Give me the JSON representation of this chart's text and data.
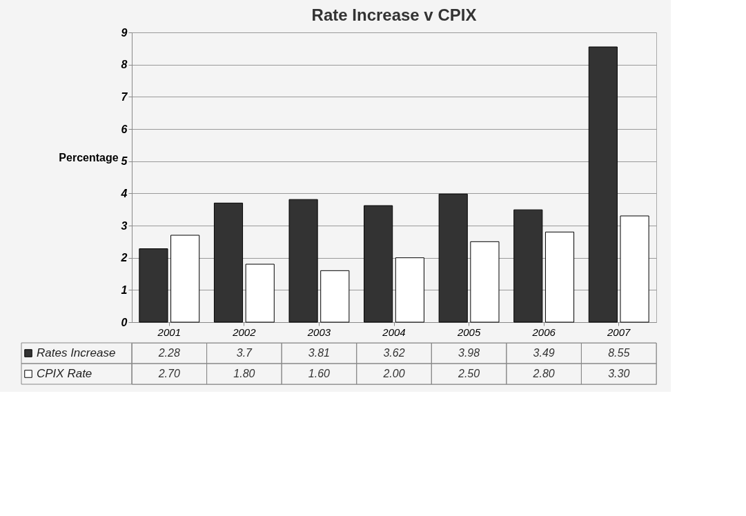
{
  "chart_data": {
    "type": "bar",
    "title": "Rate Increase v CPIX",
    "ylabel": "Percentage",
    "categories": [
      "2001",
      "2002",
      "2003",
      "2004",
      "2005",
      "2006",
      "2007"
    ],
    "series": [
      {
        "name": "Rates Increase",
        "color": "#333333",
        "values": [
          2.28,
          3.7,
          3.81,
          3.62,
          3.98,
          3.49,
          8.55
        ],
        "value_labels": [
          "2.28",
          "3.7",
          "3.81",
          "3.62",
          "3.98",
          "3.49",
          "8.55"
        ]
      },
      {
        "name": "CPIX Rate",
        "color": "#ffffff",
        "values": [
          2.7,
          1.8,
          1.6,
          2.0,
          2.5,
          2.8,
          3.3
        ],
        "value_labels": [
          "2.70",
          "1.80",
          "1.60",
          "2.00",
          "2.50",
          "2.80",
          "3.30"
        ]
      }
    ],
    "ylim": [
      0,
      9
    ],
    "yticks": [
      0,
      1,
      2,
      3,
      4,
      5,
      6,
      7,
      8,
      9
    ],
    "grid": "y",
    "legend": "bottom"
  }
}
